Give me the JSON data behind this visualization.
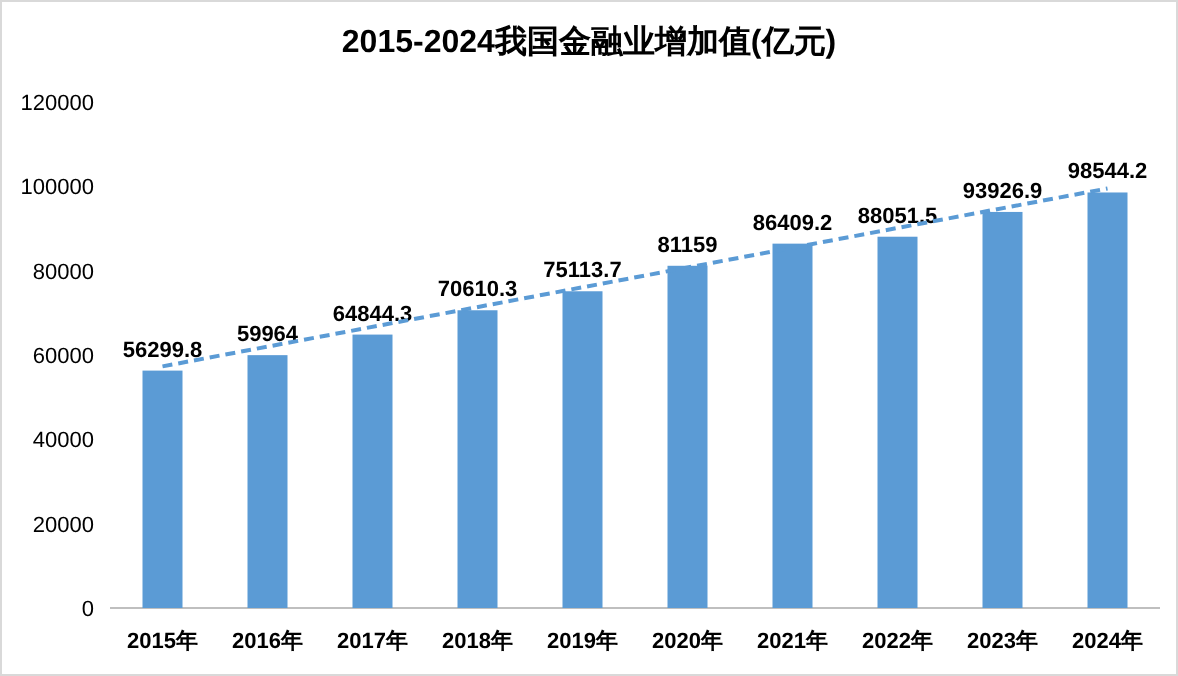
{
  "chart_data": {
    "type": "bar",
    "title": "2015-2024我国金融业增加值(亿元)",
    "categories": [
      "2015年",
      "2016年",
      "2017年",
      "2018年",
      "2019年",
      "2020年",
      "2021年",
      "2022年",
      "2023年",
      "2024年"
    ],
    "series": [
      {
        "color": "#5b9bd5",
        "values": [
          56299.8,
          59964,
          64844.3,
          70610.3,
          75113.7,
          81159,
          86409.2,
          88051.5,
          93926.9,
          98544.2
        ],
        "value_labels": [
          "56299.8",
          "59964",
          "64844.3",
          "70610.3",
          "75113.7",
          "81159",
          "86409.2",
          "88051.5",
          "93926.9",
          "98544.2"
        ]
      },
      {
        "type": "line",
        "color": "#5b9bd5",
        "x": [
          "2015年",
          "2024年"
        ],
        "values": [
          57300,
          99500
        ],
        "line_style": "dashed"
      }
    ],
    "ylim": [
      0,
      120000
    ],
    "yticks": [
      0,
      20000,
      40000,
      60000,
      80000,
      100000,
      120000
    ],
    "grid": false
  }
}
